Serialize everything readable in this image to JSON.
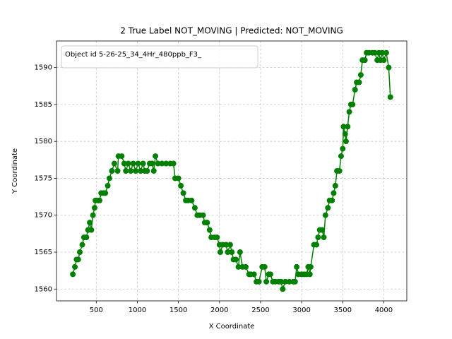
{
  "chart_data": {
    "type": "line",
    "title": "2 True Label NOT_MOVING | Predicted: NOT_MOVING",
    "x_label": "X Coordinate",
    "y_label": "Y Coordinate",
    "legend_title": "Object id 5-26-25_34_4Hr_480ppb_F3_",
    "grid": true,
    "xlim": [
      16,
      4280
    ],
    "ylim": [
      1558.4,
      1593.6
    ],
    "xticks": [
      500,
      1000,
      1500,
      2000,
      2500,
      3000,
      3500,
      4000
    ],
    "yticks": [
      1560,
      1565,
      1570,
      1575,
      1580,
      1585,
      1590
    ],
    "x": [
      215,
      240,
      260,
      280,
      300,
      330,
      350,
      380,
      400,
      420,
      440,
      460,
      480,
      490,
      520,
      540,
      560,
      590,
      610,
      640,
      660,
      690,
      720,
      760,
      770,
      810,
      840,
      860,
      890,
      920,
      950,
      980,
      1010,
      1040,
      1070,
      1090,
      1120,
      1150,
      1180,
      1200,
      1220,
      1250,
      1300,
      1350,
      1400,
      1440,
      1460,
      1500,
      1530,
      1560,
      1590,
      1620,
      1660,
      1700,
      1730,
      1760,
      1800,
      1820,
      1850,
      1880,
      1900,
      1940,
      1970,
      2000,
      2010,
      2040,
      2080,
      2100,
      2130,
      2150,
      2170,
      2200,
      2230,
      2250,
      2280,
      2320,
      2360,
      2380,
      2420,
      2450,
      2480,
      2520,
      2550,
      2570,
      2600,
      2620,
      2650,
      2680,
      2720,
      2750,
      2770,
      2800,
      2850,
      2900,
      2920,
      2940,
      2960,
      3000,
      3030,
      3060,
      3080,
      3100,
      3110,
      3150,
      3180,
      3200,
      3220,
      3250,
      3270,
      3290,
      3320,
      3340,
      3370,
      3390,
      3410,
      3430,
      3460,
      3480,
      3500,
      3510,
      3530,
      3540,
      3560,
      3580,
      3600,
      3620,
      3650,
      3670,
      3700,
      3720,
      3740,
      3770,
      3790,
      3820,
      3860,
      3890,
      3920,
      3940,
      3960,
      3980,
      4000,
      4030,
      4060,
      4080
    ],
    "series": [
      {
        "color": "green",
        "values": [
          1562,
          1563,
          1564,
          1564,
          1565,
          1566,
          1567,
          1567,
          1568,
          1569,
          1568,
          1570,
          1571,
          1572,
          1572,
          1572,
          1573,
          1573,
          1573,
          1574,
          1575,
          1576,
          1577,
          1576,
          1578,
          1578,
          1577,
          1576,
          1577,
          1576,
          1577,
          1576,
          1577,
          1576,
          1577,
          1576,
          1576,
          1577,
          1577,
          1576,
          1578,
          1577,
          1577,
          1577,
          1577,
          1577,
          1575,
          1575,
          1574,
          1573,
          1572,
          1572,
          1572,
          1571,
          1570,
          1570,
          1570,
          1569,
          1569,
          1568,
          1567,
          1567,
          1567,
          1566,
          1565,
          1566,
          1566,
          1565,
          1566,
          1565,
          1564,
          1564,
          1563,
          1565,
          1563,
          1563,
          1562,
          1562,
          1562,
          1561,
          1561,
          1563,
          1563,
          1561,
          1562,
          1562,
          1561,
          1561,
          1561,
          1561,
          1560,
          1561,
          1561,
          1561,
          1561,
          1563,
          1562,
          1562,
          1562,
          1562,
          1563,
          1562,
          1563,
          1566,
          1566,
          1567,
          1568,
          1568,
          1567,
          1570,
          1571,
          1572,
          1572,
          1573,
          1574,
          1576,
          1576,
          1578,
          1579,
          1582,
          1581,
          1580,
          1582,
          1584,
          1585,
          1585,
          1587,
          1588,
          1588,
          1589,
          1591,
          1591,
          1592,
          1592,
          1592,
          1592,
          1591,
          1592,
          1591,
          1592,
          1591,
          1592,
          1590,
          1586
        ]
      }
    ]
  }
}
